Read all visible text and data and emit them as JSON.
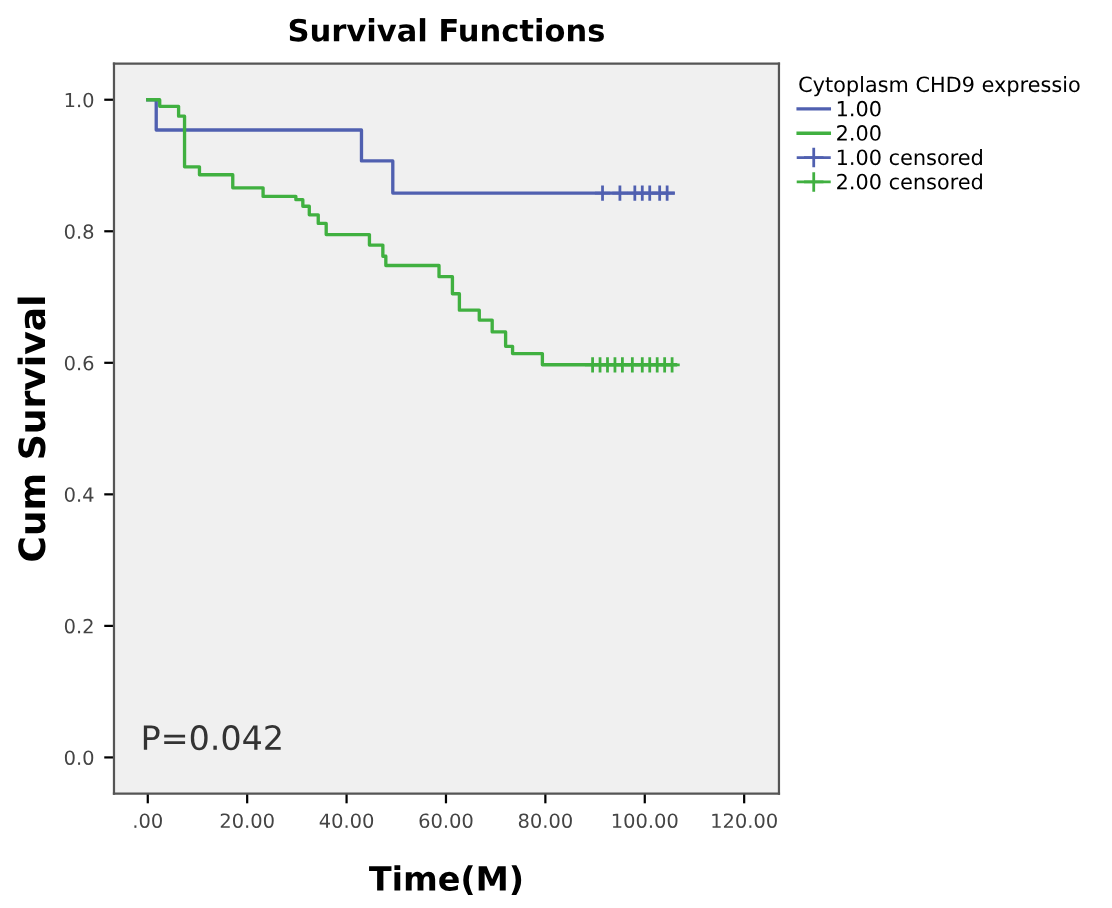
{
  "chart_data": {
    "type": "step",
    "title": "Survival Functions",
    "xlabel": "Time(M)",
    "ylabel": "Cum Survival",
    "legend_title": "Cytoplasm CHD9 expressio",
    "legend": "right",
    "grid": false,
    "xlim": [
      -6.8,
      127
    ],
    "ylim": [
      -0.055,
      1.055
    ],
    "xticks": [
      {
        "value": 0,
        "label": ".00"
      },
      {
        "value": 20,
        "label": "20.00"
      },
      {
        "value": 40,
        "label": "40.00"
      },
      {
        "value": 60,
        "label": "60.00"
      },
      {
        "value": 80,
        "label": "80.00"
      },
      {
        "value": 100,
        "label": "100.00"
      },
      {
        "value": 120,
        "label": "120.00"
      }
    ],
    "yticks": [
      {
        "value": 0,
        "label": "0.0"
      },
      {
        "value": 0.2,
        "label": "0.2"
      },
      {
        "value": 0.4,
        "label": "0.4"
      },
      {
        "value": 0.6,
        "label": "0.6"
      },
      {
        "value": 0.8,
        "label": "0.8"
      },
      {
        "value": 1.0,
        "label": "1.0"
      }
    ],
    "annotations": [
      "P=0.042"
    ],
    "series": [
      {
        "name": "1.00",
        "color": "#5060b0",
        "x": [
          0,
          1.7,
          43,
          49.3,
          105.7
        ],
        "values": [
          1.0,
          0.954,
          0.907,
          0.858,
          0.858
        ]
      },
      {
        "name": "2.00",
        "color": "#40b040",
        "x": [
          0,
          2.4,
          6.2,
          7.4,
          10.4,
          17.1,
          23.2,
          29.8,
          31.2,
          32.5,
          34.3,
          35.9,
          44.6,
          47.3,
          47.9,
          58.6,
          61.3,
          62.7,
          66.7,
          69.3,
          72,
          73.4,
          79.4,
          106.2
        ],
        "values": [
          1.0,
          0.99,
          0.975,
          0.898,
          0.886,
          0.866,
          0.853,
          0.848,
          0.838,
          0.825,
          0.812,
          0.795,
          0.779,
          0.762,
          0.748,
          0.731,
          0.705,
          0.68,
          0.665,
          0.647,
          0.625,
          0.614,
          0.597,
          0.597
        ]
      },
      {
        "name": "1.00 censored",
        "type": "scatter",
        "marker": "cross",
        "color": "#5060b0",
        "x": [
          91.5,
          95,
          98,
          99.5,
          101,
          103,
          104.5
        ],
        "values": [
          0.858,
          0.858,
          0.858,
          0.858,
          0.858,
          0.858,
          0.858
        ]
      },
      {
        "name": "2.00 censored",
        "type": "scatter",
        "marker": "cross",
        "color": "#40b040",
        "x": [
          89.5,
          91,
          92.5,
          94,
          95.5,
          97.5,
          99.5,
          101,
          102.5,
          104,
          105.5
        ],
        "values": [
          0.597,
          0.597,
          0.597,
          0.597,
          0.597,
          0.597,
          0.597,
          0.597,
          0.597,
          0.597,
          0.597
        ]
      }
    ]
  }
}
